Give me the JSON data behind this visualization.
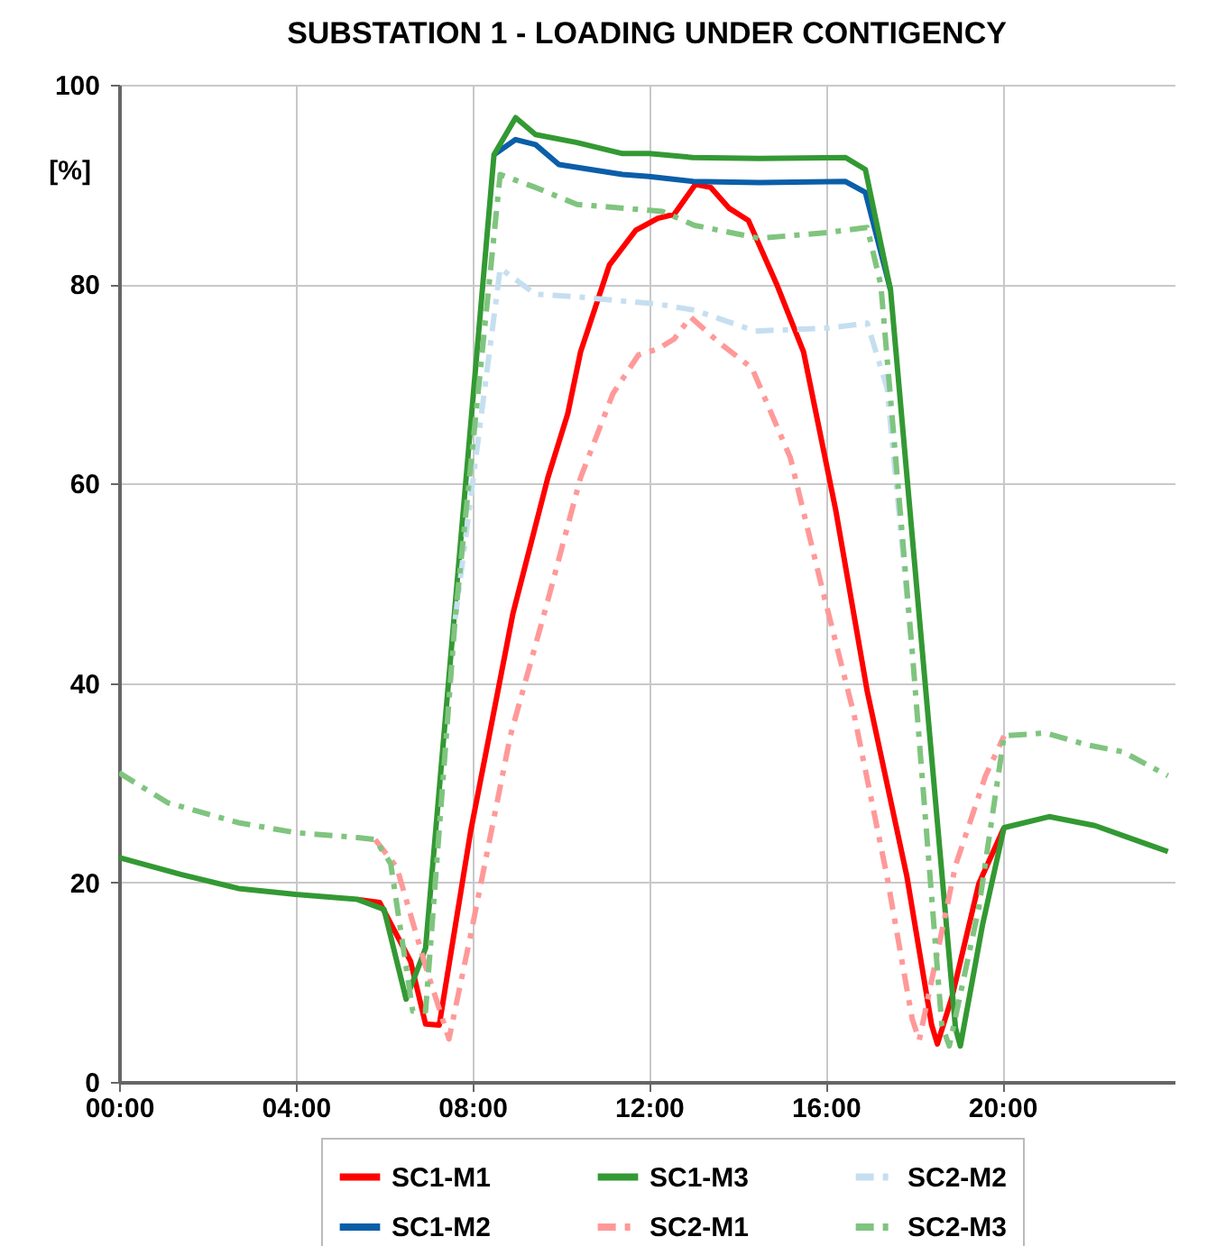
{
  "chart_data": {
    "type": "line",
    "title": "SUBSTATION 1 - LOADING UNDER CONTIGENCY",
    "ylabel": "[%]",
    "xlim": [
      0,
      23.9
    ],
    "xticks": [
      {
        "value": 0,
        "label": "00:00"
      },
      {
        "value": 4,
        "label": "04:00"
      },
      {
        "value": 8,
        "label": "08:00"
      },
      {
        "value": 12,
        "label": "12:00"
      },
      {
        "value": 16,
        "label": "16:00"
      },
      {
        "value": 20,
        "label": "20:00"
      }
    ],
    "ylim": [
      0,
      100
    ],
    "yticks": [
      0,
      20,
      40,
      60,
      80,
      100
    ],
    "grid": true,
    "legend": "bottom",
    "series": [
      {
        "name": "SC1-M1",
        "color": "#ff0000",
        "line_style": "solid",
        "x": [
          5.4,
          5.9,
          6.6,
          6.94,
          7.25,
          7.96,
          8.92,
          9.71,
          10.16,
          10.45,
          11.1,
          11.7,
          12.2,
          12.57,
          13.05,
          13.4,
          13.82,
          14.25,
          14.9,
          15.5,
          16.23,
          16.94,
          17.84,
          18.4,
          18.53,
          18.86,
          19.47,
          20.04
        ],
        "values": [
          18.3,
          18,
          12.1,
          5.8,
          5.7,
          25.1,
          47,
          60.6,
          67,
          73.2,
          81.9,
          85.4,
          86.6,
          87,
          90,
          89.7,
          87.6,
          86.4,
          79.9,
          73.2,
          57.3,
          39.2,
          20.6,
          5.7,
          3.8,
          8.5,
          19.9,
          25.5
        ]
      },
      {
        "name": "SC1-M2",
        "color": "#0b5ea8",
        "line_style": "solid",
        "x": [
          8.49,
          8.98,
          9.43,
          9.96,
          11.4,
          12,
          13,
          14.5,
          16.45,
          16.9,
          17.47
        ],
        "values": [
          93,
          94.5,
          94,
          92,
          91,
          90.8,
          90.3,
          90.2,
          90.3,
          89.2,
          79.4
        ]
      },
      {
        "name": "SC1-M3",
        "color": "#339933",
        "line_style": "solid",
        "x": [
          0,
          1.4,
          2.7,
          4,
          5.4,
          6.0,
          6.5,
          6.94,
          8.49,
          8.98,
          9.43,
          10.37,
          11.4,
          12,
          13,
          14.5,
          16.45,
          16.9,
          17.47,
          18.94,
          19.05,
          19.55,
          20.04,
          21.06,
          22.1,
          23.75
        ],
        "values": [
          22.5,
          20.8,
          19.4,
          18.8,
          18.3,
          17.3,
          8.3,
          13.4,
          93,
          96.7,
          95,
          94.2,
          93.1,
          93.1,
          92.7,
          92.6,
          92.7,
          91.5,
          79.4,
          5.4,
          3.6,
          15.7,
          25.5,
          26.6,
          25.7,
          23.1
        ]
      },
      {
        "name": "SC2-M1",
        "color": "#ff9999",
        "line_style": "dashed",
        "x": [
          5.8,
          6.29,
          6.94,
          7.47,
          7.96,
          8.86,
          9.71,
          10.45,
          11.18,
          11.76,
          12.2,
          12.57,
          12.94,
          13.6,
          14.33,
          15.2,
          15.92,
          16.65,
          17.39,
          17.96,
          18.12,
          18.94,
          19.62,
          20.04
        ],
        "values": [
          24.3,
          21.5,
          11.6,
          4.3,
          14.7,
          34.7,
          48.3,
          60.6,
          69,
          72.9,
          73.5,
          74.5,
          76.7,
          74.1,
          71.6,
          62.6,
          49.5,
          36.7,
          20.6,
          6.3,
          4.2,
          21.7,
          30.7,
          34.7
        ]
      },
      {
        "name": "SC2-M2",
        "color": "#c5dff0",
        "line_style": "dashed",
        "x": [
          7.61,
          8.63,
          9.43,
          10.45,
          12.2,
          13.03,
          14.4,
          16.08,
          16.94,
          17.39,
          17.96
        ],
        "values": [
          46.4,
          81.6,
          79,
          78.7,
          78,
          77.4,
          75.3,
          75.6,
          76.1,
          69.6,
          43.2
        ]
      },
      {
        "name": "SC2-M3",
        "color": "#7fc47f",
        "line_style": "dashed",
        "x": [
          0,
          1.1,
          2.7,
          4,
          5.4,
          5.8,
          6.15,
          6.65,
          6.94,
          7.61,
          8.63,
          9.43,
          10.37,
          12.3,
          13.03,
          14.5,
          16.08,
          16.94,
          17.25,
          17.96,
          18.63,
          18.8,
          19.47,
          20.04,
          20.98,
          21.92,
          22.73,
          23.75
        ],
        "values": [
          31,
          28,
          26,
          25,
          24.5,
          24.3,
          21.9,
          7.1,
          7.1,
          46.4,
          91,
          89.7,
          88,
          87.3,
          85.9,
          84.6,
          85.2,
          85.7,
          79.9,
          43.2,
          5.7,
          3.6,
          17.5,
          34.7,
          35,
          33.8,
          33.1,
          30.7
        ]
      }
    ]
  }
}
